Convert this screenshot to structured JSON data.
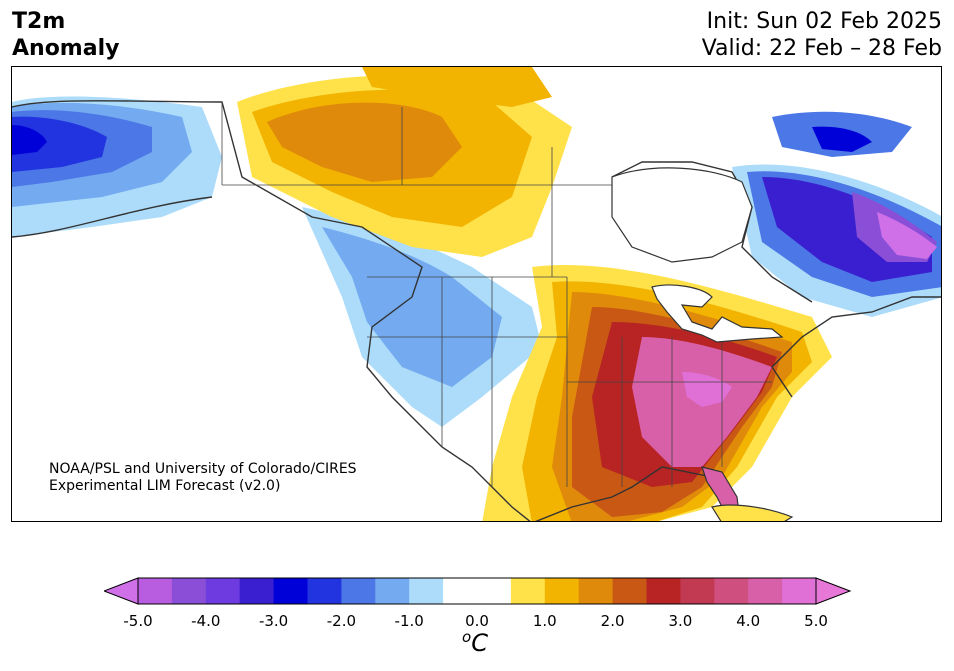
{
  "title": {
    "line1": "T2m",
    "line2": "Anomaly"
  },
  "dates": {
    "init": "Init: Sun 02 Feb 2025",
    "valid": "Valid: 22 Feb – 28 Feb"
  },
  "credit": {
    "line1": "NOAA/PSL and University of Colorado/CIRES",
    "line2": "Experimental LIM Forecast (v2.0)"
  },
  "colorbar": {
    "ticks": [
      "-5.0",
      "-4.0",
      "-3.0",
      "-2.0",
      "-1.0",
      "0.0",
      "1.0",
      "2.0",
      "3.0",
      "4.0",
      "5.0"
    ],
    "levels": [
      -5.0,
      -4.5,
      -4.0,
      -3.5,
      -3.0,
      -2.5,
      -2.0,
      -1.5,
      -1.0,
      -0.5,
      0.0,
      0.5,
      1.0,
      1.5,
      2.0,
      2.5,
      3.0,
      3.5,
      4.0,
      4.5,
      5.0
    ],
    "colors": [
      "#b85ce0",
      "#8a4fd6",
      "#6d3be0",
      "#3a1fd0",
      "#0000d8",
      "#2233e0",
      "#4c77e6",
      "#73aaf0",
      "#acdcfa",
      "#ffffff",
      "#ffffff",
      "#ffe24a",
      "#f2b400",
      "#e08a0c",
      "#c85814",
      "#b82323",
      "#c23a52",
      "#cf4f7e",
      "#d860a8",
      "#e070d6"
    ],
    "under_color": "#d070e8",
    "over_color": "#e878d8",
    "unit_base": "C",
    "unit_sup": "o"
  }
}
